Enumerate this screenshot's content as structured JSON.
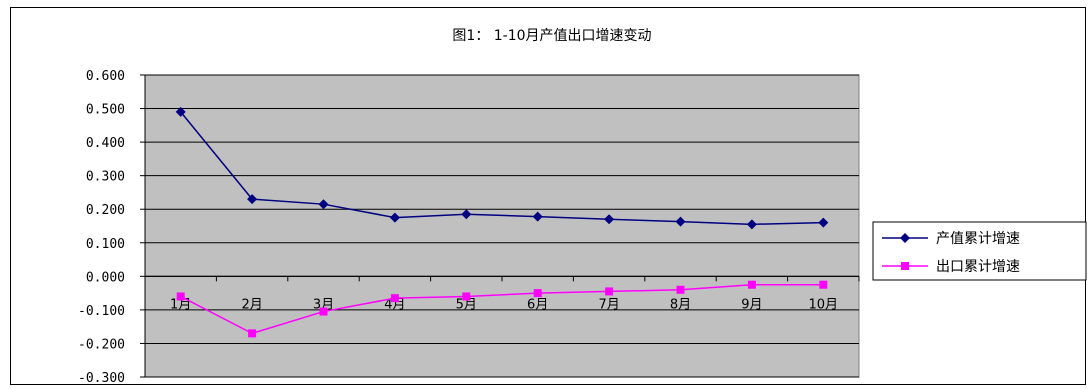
{
  "chart_data": {
    "type": "line",
    "title": "图1： 1-10月产值出口增速变动",
    "categories": [
      "1月",
      "2月",
      "3月",
      "4月",
      "5月",
      "6月",
      "7月",
      "8月",
      "9月",
      "10月"
    ],
    "ylim": [
      -0.3,
      0.6
    ],
    "yticks": [
      "0.600",
      "0.500",
      "0.400",
      "0.300",
      "0.200",
      "0.100",
      "0.000",
      "-0.100",
      "-0.200",
      "-0.300"
    ],
    "grid": true,
    "legend_position": "right",
    "series": [
      {
        "name": "产值累计增速",
        "color": "#000080",
        "marker": "diamond",
        "values": [
          0.49,
          0.23,
          0.215,
          0.175,
          0.185,
          0.178,
          0.17,
          0.163,
          0.155,
          0.16
        ]
      },
      {
        "name": "出口累计增速",
        "color": "#ff00ff",
        "marker": "square",
        "values": [
          -0.06,
          -0.17,
          -0.105,
          -0.065,
          -0.06,
          -0.05,
          -0.045,
          -0.04,
          -0.025,
          -0.025
        ]
      }
    ]
  }
}
